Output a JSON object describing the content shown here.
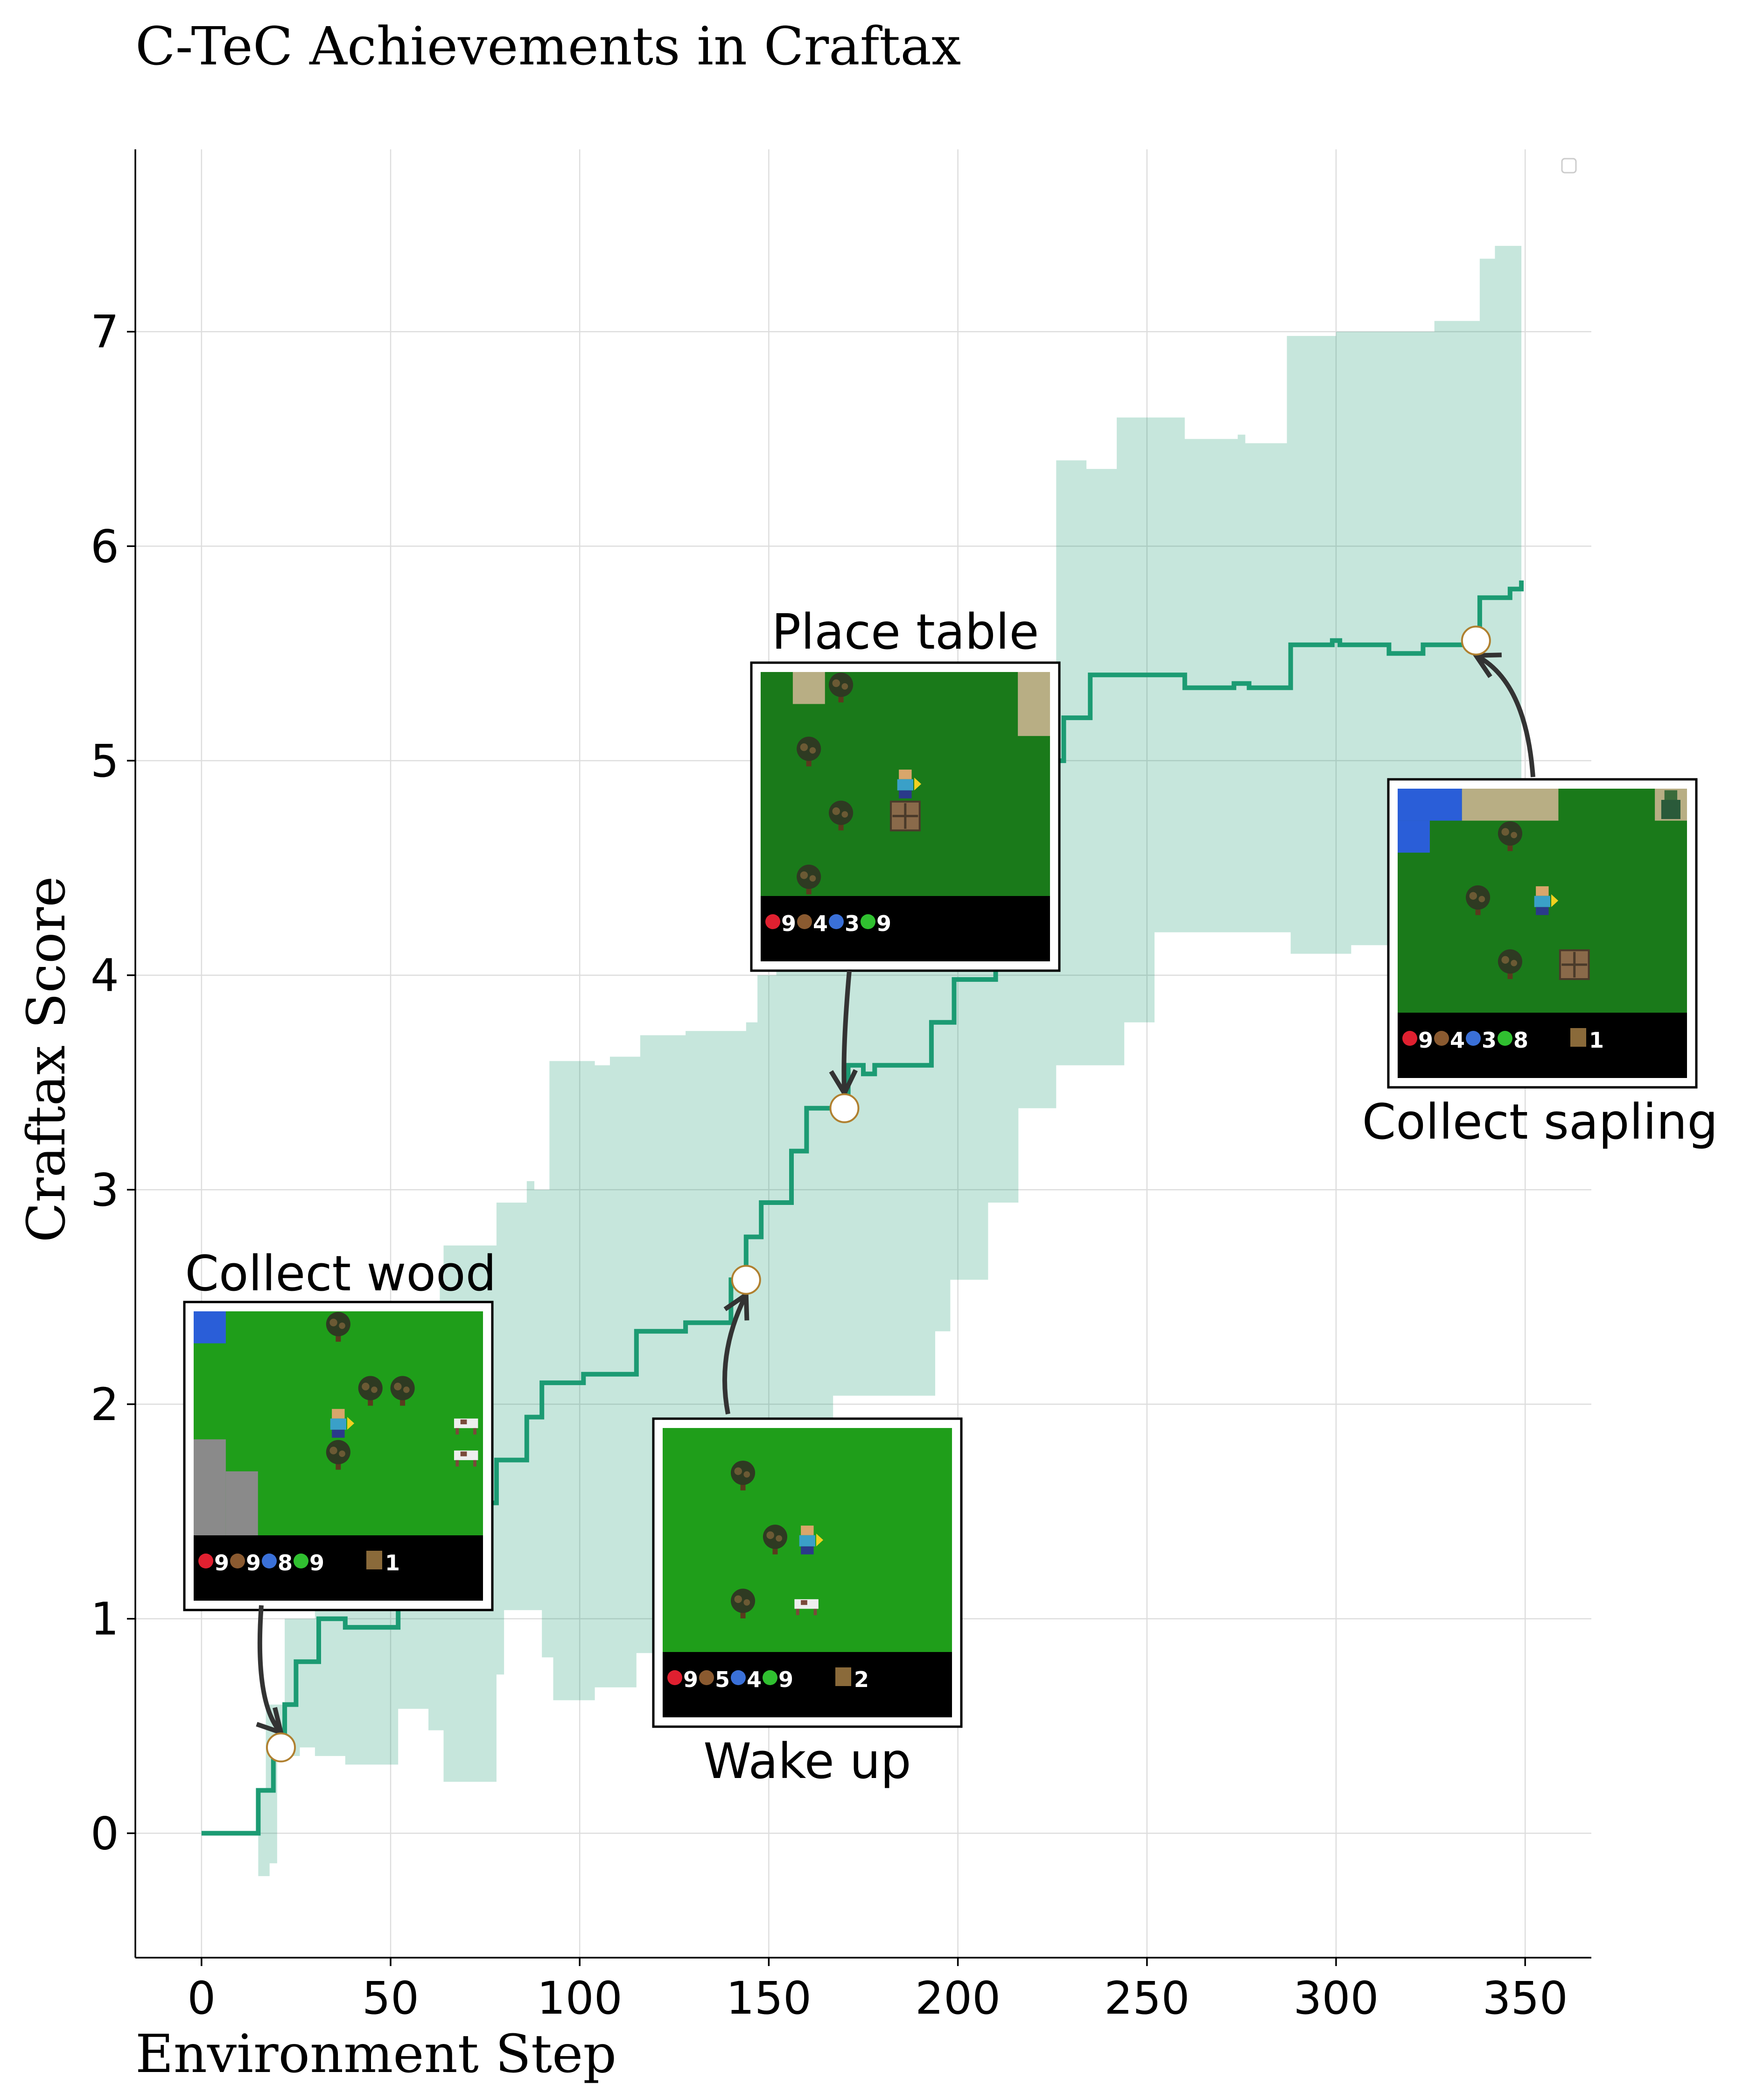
{
  "chart_data": {
    "type": "line",
    "title": "C-TeC Achievements in Craftax",
    "xlabel": "Environment Step",
    "ylabel": "Craftax Score",
    "xlim": [
      -17.5,
      367.5
    ],
    "ylim": [
      -0.58,
      7.85
    ],
    "xticks": [
      0,
      50,
      100,
      150,
      200,
      250,
      300,
      350
    ],
    "yticks": [
      0,
      1,
      2,
      3,
      4,
      5,
      6,
      7
    ],
    "grid": true,
    "legend": "top-right",
    "colors": {
      "line": "#1c9b73",
      "band": "#1c9b73",
      "band_opacity": 0.25,
      "marker_edge": "#b08030"
    },
    "mean": [
      [
        0,
        0
      ],
      [
        15,
        0
      ],
      [
        15,
        0.2
      ],
      [
        19,
        0.2
      ],
      [
        19,
        0.4
      ],
      [
        22,
        0.4
      ],
      [
        22,
        0.6
      ],
      [
        25,
        0.6
      ],
      [
        25,
        0.8
      ],
      [
        31,
        0.8
      ],
      [
        31,
        1.0
      ],
      [
        38,
        1.0
      ],
      [
        38,
        0.96
      ],
      [
        52,
        0.96
      ],
      [
        52,
        1.1
      ],
      [
        66,
        1.1
      ],
      [
        66,
        1.2
      ],
      [
        70,
        1.2
      ],
      [
        70,
        1.38
      ],
      [
        74,
        1.38
      ],
      [
        74,
        1.54
      ],
      [
        78,
        1.54
      ],
      [
        78,
        1.74
      ],
      [
        86,
        1.74
      ],
      [
        86,
        1.94
      ],
      [
        90,
        1.94
      ],
      [
        90,
        2.1
      ],
      [
        101,
        2.1
      ],
      [
        101,
        2.14
      ],
      [
        115,
        2.14
      ],
      [
        115,
        2.34
      ],
      [
        128,
        2.34
      ],
      [
        128,
        2.38
      ],
      [
        140,
        2.38
      ],
      [
        140,
        2.58
      ],
      [
        144,
        2.58
      ],
      [
        144,
        2.78
      ],
      [
        148,
        2.78
      ],
      [
        148,
        2.94
      ],
      [
        156,
        2.94
      ],
      [
        156,
        3.18
      ],
      [
        160,
        3.18
      ],
      [
        160,
        3.38
      ],
      [
        171,
        3.38
      ],
      [
        171,
        3.58
      ],
      [
        175,
        3.58
      ],
      [
        175,
        3.54
      ],
      [
        178,
        3.54
      ],
      [
        178,
        3.58
      ],
      [
        193,
        3.58
      ],
      [
        193,
        3.78
      ],
      [
        199,
        3.78
      ],
      [
        199,
        3.98
      ],
      [
        210,
        3.98
      ],
      [
        210,
        4.2
      ],
      [
        214,
        4.2
      ],
      [
        214,
        4.6
      ],
      [
        218,
        4.6
      ],
      [
        218,
        5.0
      ],
      [
        228,
        5.0
      ],
      [
        228,
        5.2
      ],
      [
        235,
        5.2
      ],
      [
        235,
        5.4
      ],
      [
        260,
        5.4
      ],
      [
        260,
        5.34
      ],
      [
        273,
        5.34
      ],
      [
        273,
        5.36
      ],
      [
        277,
        5.36
      ],
      [
        277,
        5.34
      ],
      [
        288,
        5.34
      ],
      [
        288,
        5.54
      ],
      [
        299,
        5.54
      ],
      [
        299,
        5.56
      ],
      [
        301,
        5.56
      ],
      [
        301,
        5.54
      ],
      [
        314,
        5.54
      ],
      [
        314,
        5.5
      ],
      [
        323,
        5.5
      ],
      [
        323,
        5.54
      ],
      [
        336,
        5.54
      ],
      [
        336,
        5.56
      ],
      [
        338,
        5.56
      ],
      [
        338,
        5.76
      ],
      [
        346,
        5.76
      ],
      [
        346,
        5.8
      ],
      [
        349,
        5.8
      ],
      [
        349,
        5.84
      ]
    ],
    "band_upper": [
      [
        15,
        -0.2
      ],
      [
        15,
        0.2
      ],
      [
        17,
        0.2
      ],
      [
        17,
        0.6
      ],
      [
        22,
        0.6
      ],
      [
        22,
        1.0
      ],
      [
        30,
        1.0
      ],
      [
        30,
        1.3
      ],
      [
        36,
        1.3
      ],
      [
        36,
        1.5
      ],
      [
        44,
        1.5
      ],
      [
        44,
        1.6
      ],
      [
        52,
        1.6
      ],
      [
        52,
        2.0
      ],
      [
        60,
        2.0
      ],
      [
        60,
        2.4
      ],
      [
        63,
        2.4
      ],
      [
        63,
        2.55
      ],
      [
        64,
        2.55
      ],
      [
        64,
        2.74
      ],
      [
        78,
        2.74
      ],
      [
        78,
        2.94
      ],
      [
        86,
        2.94
      ],
      [
        86,
        3.04
      ],
      [
        88,
        3.04
      ],
      [
        88,
        3.0
      ],
      [
        92,
        3.0
      ],
      [
        92,
        3.6
      ],
      [
        104,
        3.6
      ],
      [
        104,
        3.58
      ],
      [
        108,
        3.58
      ],
      [
        108,
        3.62
      ],
      [
        116,
        3.62
      ],
      [
        116,
        3.72
      ],
      [
        128,
        3.72
      ],
      [
        128,
        3.74
      ],
      [
        144,
        3.74
      ],
      [
        144,
        3.78
      ],
      [
        147,
        3.78
      ],
      [
        147,
        4.0
      ],
      [
        152,
        4.0
      ],
      [
        152,
        4.2
      ],
      [
        162,
        4.2
      ],
      [
        162,
        4.3
      ],
      [
        174,
        4.3
      ],
      [
        174,
        4.2
      ],
      [
        188,
        4.2
      ],
      [
        188,
        4.4
      ],
      [
        200,
        4.4
      ],
      [
        200,
        4.6
      ],
      [
        210,
        4.6
      ],
      [
        210,
        4.8
      ],
      [
        220,
        4.8
      ],
      [
        220,
        4.8
      ],
      [
        226,
        4.8
      ],
      [
        226,
        6.4
      ],
      [
        234,
        6.4
      ],
      [
        234,
        6.36
      ],
      [
        242,
        6.36
      ],
      [
        242,
        6.6
      ],
      [
        260,
        6.6
      ],
      [
        260,
        6.5
      ],
      [
        274,
        6.5
      ],
      [
        274,
        6.52
      ],
      [
        276,
        6.52
      ],
      [
        276,
        6.48
      ],
      [
        287,
        6.48
      ],
      [
        287,
        6.98
      ],
      [
        300,
        6.98
      ],
      [
        300,
        7.0
      ],
      [
        326,
        7.0
      ],
      [
        326,
        7.05
      ],
      [
        338,
        7.05
      ],
      [
        338,
        7.34
      ],
      [
        342,
        7.34
      ],
      [
        342,
        7.4
      ],
      [
        349,
        7.4
      ],
      [
        349,
        7.48
      ]
    ],
    "band_lower": [
      [
        15,
        -0.2
      ],
      [
        18,
        -0.2
      ],
      [
        18,
        -0.14
      ],
      [
        20,
        -0.14
      ],
      [
        20,
        0.36
      ],
      [
        26,
        0.36
      ],
      [
        26,
        0.4
      ],
      [
        30,
        0.4
      ],
      [
        30,
        0.36
      ],
      [
        38,
        0.36
      ],
      [
        38,
        0.32
      ],
      [
        52,
        0.32
      ],
      [
        52,
        0.58
      ],
      [
        60,
        0.58
      ],
      [
        60,
        0.48
      ],
      [
        64,
        0.48
      ],
      [
        64,
        0.24
      ],
      [
        78,
        0.24
      ],
      [
        78,
        0.74
      ],
      [
        80,
        0.74
      ],
      [
        80,
        1.04
      ],
      [
        90,
        1.04
      ],
      [
        90,
        0.82
      ],
      [
        93,
        0.82
      ],
      [
        93,
        0.62
      ],
      [
        104,
        0.62
      ],
      [
        104,
        0.68
      ],
      [
        115,
        0.68
      ],
      [
        115,
        0.84
      ],
      [
        128,
        0.84
      ],
      [
        128,
        0.94
      ],
      [
        134,
        0.94
      ],
      [
        134,
        1.04
      ],
      [
        144,
        1.04
      ],
      [
        144,
        1.24
      ],
      [
        150,
        1.24
      ],
      [
        150,
        1.44
      ],
      [
        154,
        1.44
      ],
      [
        154,
        1.64
      ],
      [
        160,
        1.64
      ],
      [
        160,
        1.84
      ],
      [
        167,
        1.84
      ],
      [
        167,
        2.04
      ],
      [
        194,
        2.04
      ],
      [
        194,
        2.34
      ],
      [
        198,
        2.34
      ],
      [
        198,
        2.58
      ],
      [
        208,
        2.58
      ],
      [
        208,
        2.94
      ],
      [
        216,
        2.94
      ],
      [
        216,
        3.38
      ],
      [
        226,
        3.38
      ],
      [
        226,
        3.58
      ],
      [
        244,
        3.58
      ],
      [
        244,
        3.78
      ],
      [
        252,
        3.78
      ],
      [
        252,
        4.2
      ],
      [
        288,
        4.2
      ],
      [
        288,
        4.1
      ],
      [
        304,
        4.1
      ],
      [
        304,
        4.14
      ],
      [
        336,
        4.14
      ],
      [
        336,
        4.2
      ],
      [
        349,
        4.2
      ]
    ],
    "annotations": [
      {
        "label": "Collect wood",
        "x": 21,
        "y": 0.4
      },
      {
        "label": "Wake up",
        "x": 144,
        "y": 2.58
      },
      {
        "label": "Place table",
        "x": 170,
        "y": 3.38
      },
      {
        "label": "Collect sapling",
        "x": 337,
        "y": 5.56
      }
    ],
    "thumbnails": [
      {
        "for": "Collect wood",
        "hud": [
          "9",
          "9",
          "8",
          "9"
        ],
        "item": "1"
      },
      {
        "for": "Wake up",
        "hud": [
          "9",
          "5",
          "4",
          "9"
        ],
        "item": "2"
      },
      {
        "for": "Place table",
        "hud": [
          "9",
          "4",
          "3",
          "9"
        ],
        "item": ""
      },
      {
        "for": "Collect sapling",
        "hud": [
          "9",
          "4",
          "3",
          "8"
        ],
        "item": "1"
      }
    ]
  }
}
